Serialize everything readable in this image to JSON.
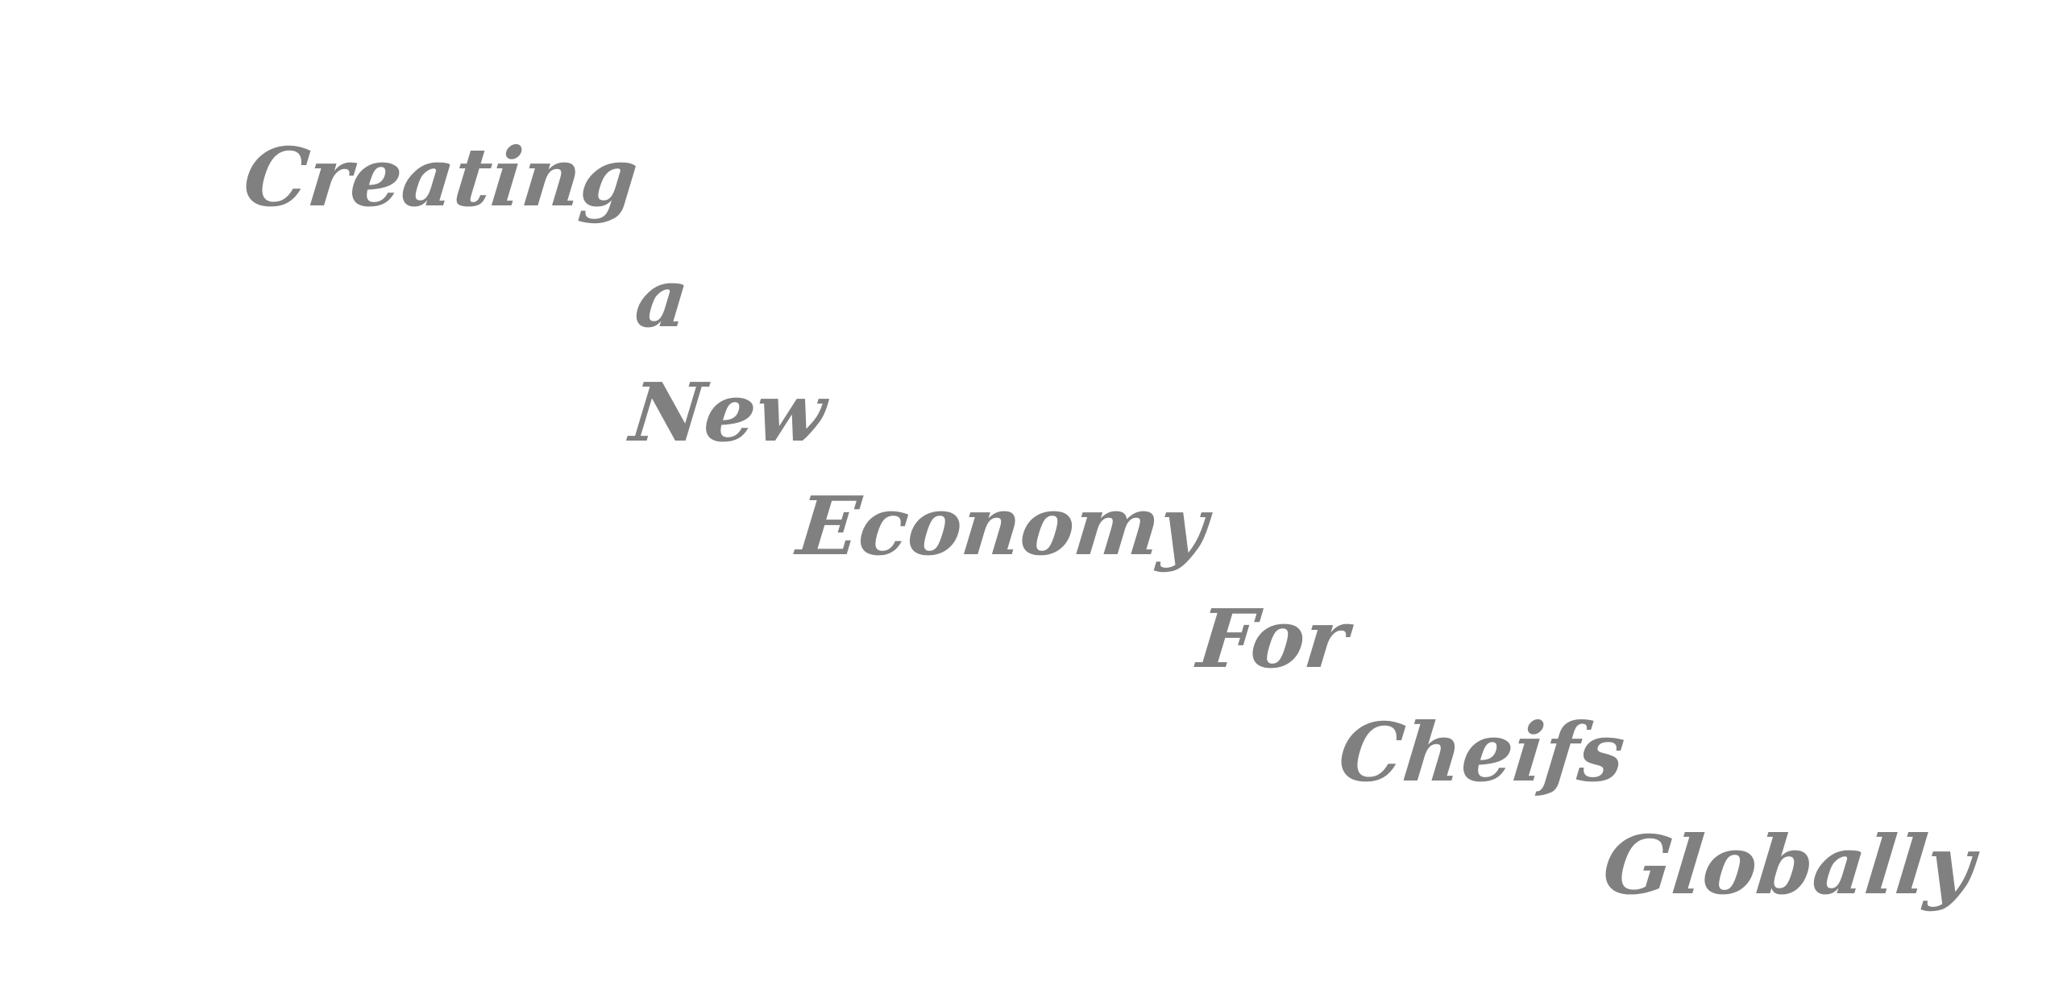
{
  "slogan": {
    "words": [
      "Creating",
      "a",
      "New",
      "Economy",
      "For",
      "Cheifs",
      "Globally"
    ]
  },
  "colors": {
    "text": "#808080",
    "background": "#ffffff"
  }
}
